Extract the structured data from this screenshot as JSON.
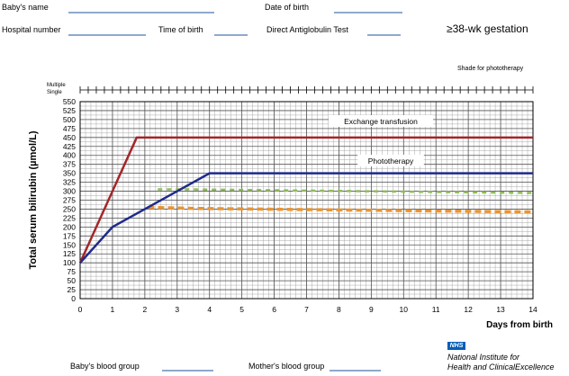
{
  "form": {
    "babys_name": "Baby's name",
    "date_of_birth": "Date of birth",
    "hospital_number": "Hospital number",
    "time_of_birth": "Time of birth",
    "dat": "Direct Antiglobulin Test",
    "gestation": "≥38-wk gestation",
    "shade_note": "Shade for phototherapy",
    "multiple": "Multiple",
    "single": "Single",
    "babys_blood_group": "Baby's blood group",
    "mothers_blood_group": "Mother's blood group"
  },
  "footer": {
    "logo": "NHS",
    "org_line1": "National Institute for",
    "org_line2": "Health and ClinicalExcellence"
  },
  "chart_data": {
    "type": "line",
    "xlabel": "Days from birth",
    "ylabel": "Total serum bilirubin (µmol/L)",
    "xlim": [
      0,
      14
    ],
    "ylim": [
      0,
      550
    ],
    "xticks": [
      0,
      1,
      2,
      3,
      4,
      5,
      6,
      7,
      8,
      9,
      10,
      11,
      12,
      13,
      14
    ],
    "yticks": [
      0,
      25,
      50,
      75,
      100,
      125,
      150,
      175,
      200,
      225,
      250,
      275,
      300,
      325,
      350,
      375,
      400,
      425,
      450,
      475,
      500,
      525,
      550
    ],
    "grid": true,
    "series": [
      {
        "name": "Exchange transfusion",
        "color": "#a3262a",
        "style": "solid",
        "x": [
          0,
          1.75,
          14
        ],
        "y": [
          100,
          450,
          450
        ]
      },
      {
        "name": "Phototherapy",
        "color": "#1f2a8a",
        "style": "solid",
        "x": [
          0,
          1,
          2,
          3,
          4,
          14
        ],
        "y": [
          100,
          200,
          250,
          300,
          350,
          350
        ]
      },
      {
        "name": "",
        "color": "#8dbd57",
        "style": "dashed",
        "x": [
          2.4,
          3.5,
          14
        ],
        "y": [
          305,
          305,
          295
        ]
      },
      {
        "name": "",
        "color": "#e89535",
        "style": "dashed",
        "x": [
          2.1,
          3.5,
          14
        ],
        "y": [
          255,
          252,
          242
        ]
      }
    ]
  }
}
